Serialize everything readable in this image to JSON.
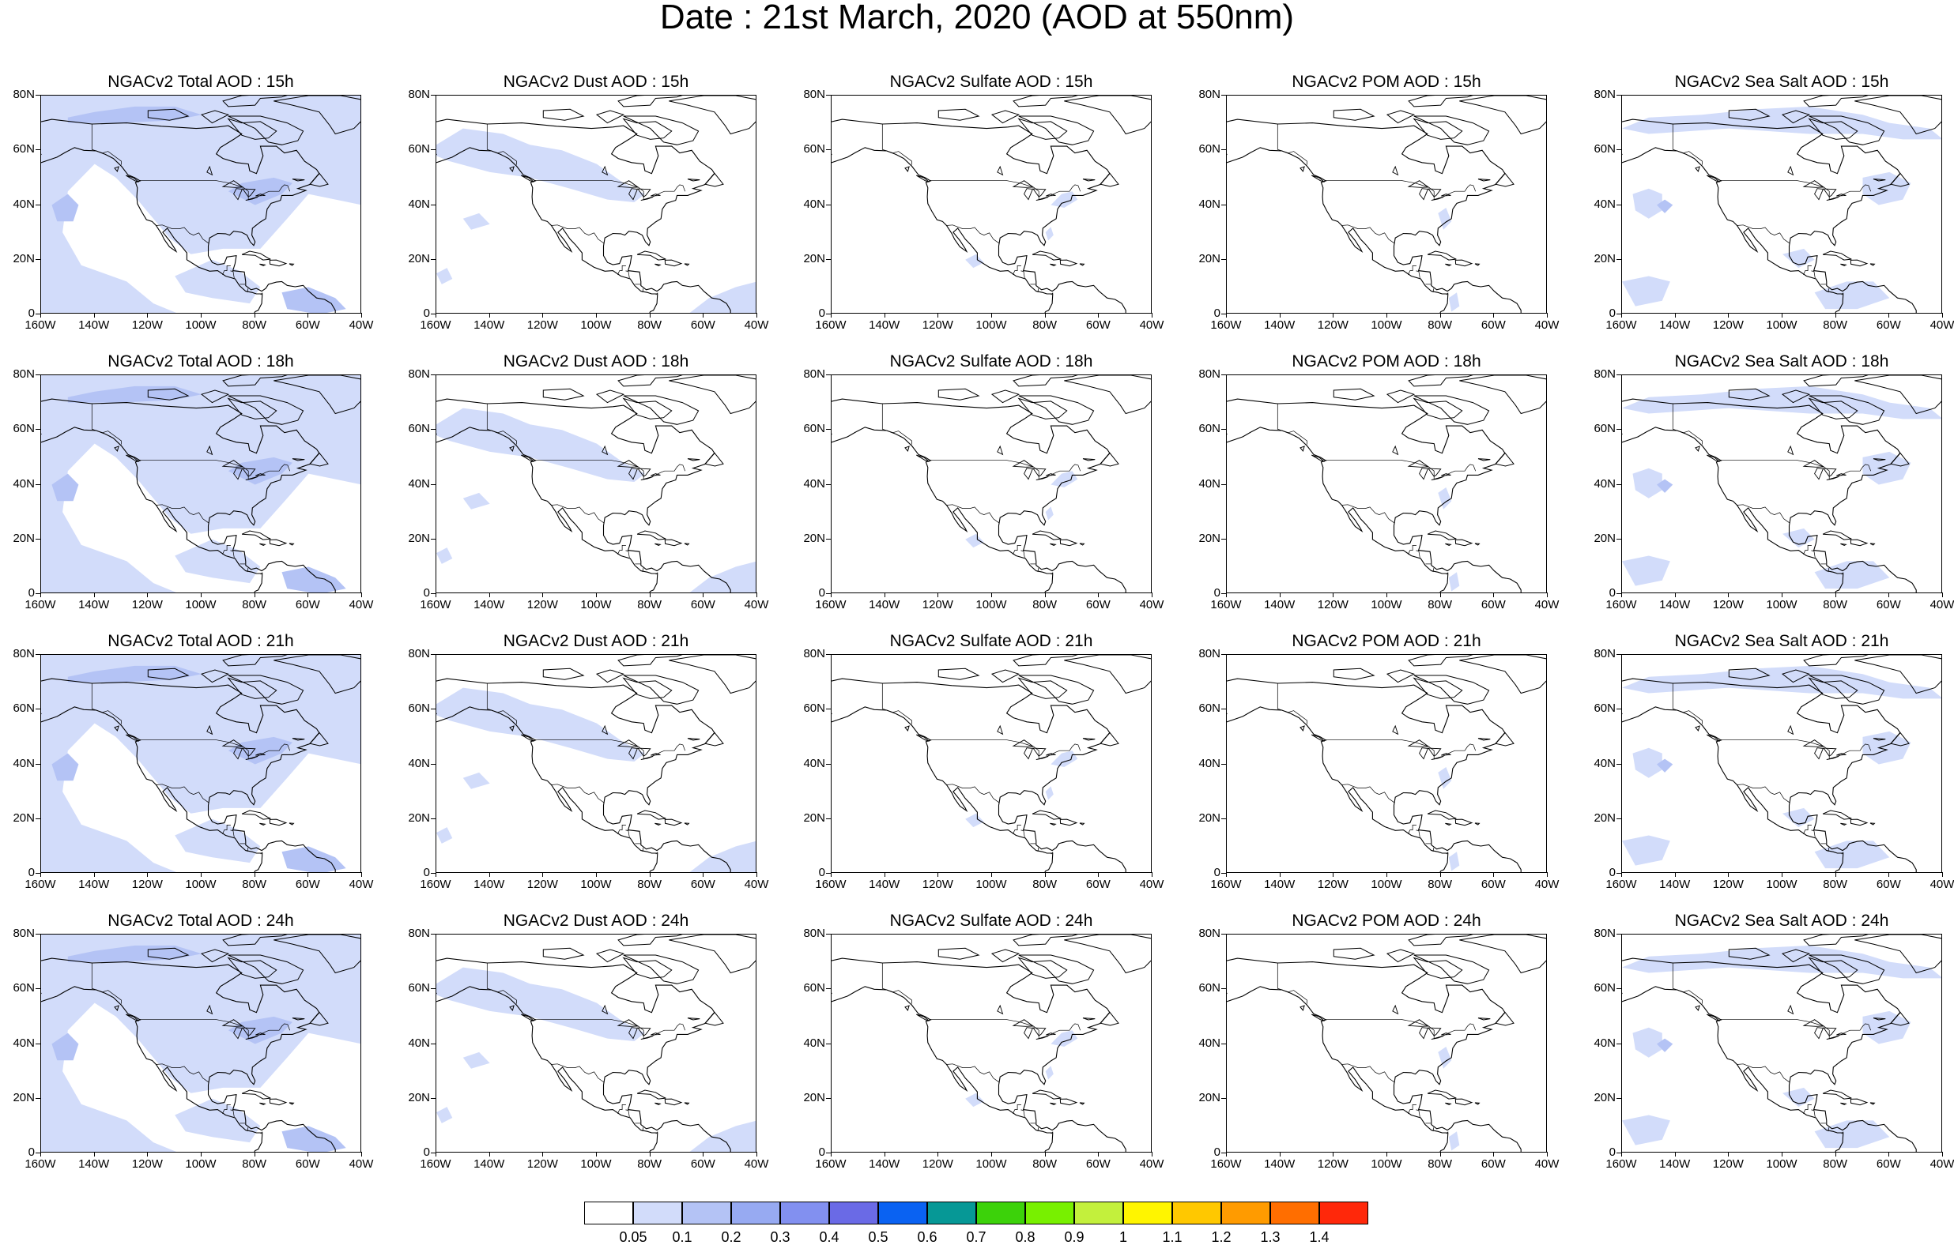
{
  "title": "Date : 21st March, 2020 (AOD at 550nm)",
  "panels": [
    {
      "title": "NGACv2 Total AOD : 15h",
      "field": "total",
      "lead": "15h"
    },
    {
      "title": "NGACv2 Dust AOD : 15h",
      "field": "dust",
      "lead": "15h"
    },
    {
      "title": "NGACv2 Sulfate AOD : 15h",
      "field": "sulfate",
      "lead": "15h"
    },
    {
      "title": "NGACv2 POM AOD : 15h",
      "field": "pom",
      "lead": "15h"
    },
    {
      "title": "NGACv2 Sea Salt AOD : 15h",
      "field": "seasalt",
      "lead": "15h"
    },
    {
      "title": "NGACv2 Total AOD : 18h",
      "field": "total",
      "lead": "18h"
    },
    {
      "title": "NGACv2 Dust AOD : 18h",
      "field": "dust",
      "lead": "18h"
    },
    {
      "title": "NGACv2 Sulfate AOD : 18h",
      "field": "sulfate",
      "lead": "18h"
    },
    {
      "title": "NGACv2 POM AOD : 18h",
      "field": "pom",
      "lead": "18h"
    },
    {
      "title": "NGACv2 Sea Salt AOD : 18h",
      "field": "seasalt",
      "lead": "18h"
    },
    {
      "title": "NGACv2 Total AOD : 21h",
      "field": "total",
      "lead": "21h"
    },
    {
      "title": "NGACv2 Dust AOD : 21h",
      "field": "dust",
      "lead": "21h"
    },
    {
      "title": "NGACv2 Sulfate AOD : 21h",
      "field": "sulfate",
      "lead": "21h"
    },
    {
      "title": "NGACv2 POM AOD : 21h",
      "field": "pom",
      "lead": "21h"
    },
    {
      "title": "NGACv2 Sea Salt AOD : 21h",
      "field": "seasalt",
      "lead": "21h"
    },
    {
      "title": "NGACv2 Total AOD : 24h",
      "field": "total",
      "lead": "24h"
    },
    {
      "title": "NGACv2 Dust AOD : 24h",
      "field": "dust",
      "lead": "24h"
    },
    {
      "title": "NGACv2 Sulfate AOD : 24h",
      "field": "sulfate",
      "lead": "24h"
    },
    {
      "title": "NGACv2 POM AOD : 24h",
      "field": "pom",
      "lead": "24h"
    },
    {
      "title": "NGACv2 Sea Salt  AOD : 24h",
      "field": "seasalt",
      "lead": "24h"
    }
  ],
  "axes": {
    "lat_labels": [
      "80N",
      "60N",
      "40N",
      "20N",
      "0"
    ],
    "lon_labels": [
      "160W",
      "140W",
      "120W",
      "100W",
      "80W",
      "60W",
      "40W"
    ],
    "lat_range": [
      0,
      80
    ],
    "lon_range": [
      -160,
      -40
    ]
  },
  "colorbar": {
    "colors": [
      "#ffffff",
      "#d2dcfa",
      "#b4c3f5",
      "#97aaf2",
      "#8290f0",
      "#6a6ae6",
      "#0a62f2",
      "#069896",
      "#3cd20a",
      "#78f000",
      "#c3f03c",
      "#fff500",
      "#ffc800",
      "#ff9b00",
      "#ff6e00",
      "#ff280a"
    ],
    "labels": [
      "0.05",
      "0.1",
      "0.2",
      "0.3",
      "0.4",
      "0.5",
      "0.6",
      "0.7",
      "0.8",
      "0.9",
      "1",
      "1.1",
      "1.2",
      "1.3",
      "1.4"
    ]
  },
  "colors": {
    "aod_low": "#d2dcfa",
    "aod_mid": "#b4c3f5",
    "coastline": "#000000"
  }
}
